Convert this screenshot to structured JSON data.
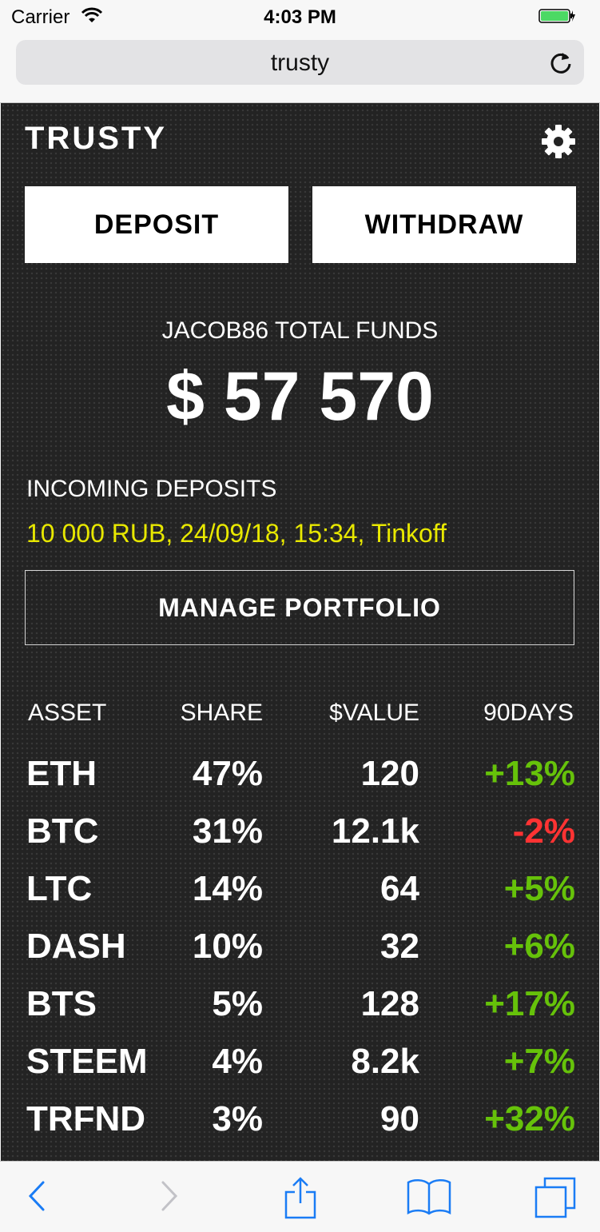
{
  "status_bar": {
    "carrier": "Carrier",
    "time": "4:03 PM"
  },
  "browser": {
    "url": "trusty"
  },
  "app": {
    "logo": "TRUSTY",
    "deposit_label": "DEPOSIT",
    "withdraw_label": "WITHDRAW",
    "total_label": "JACOB86 TOTAL FUNDS",
    "total_value": "$ 57 570",
    "incoming_label": "INCOMING DEPOSITS",
    "incoming_item": "10 000 RUB, 24/09/18, 15:34, Tinkoff",
    "manage_label": "MANAGE PORTFOLIO",
    "table": {
      "headers": [
        "ASSET",
        "SHARE",
        "$VALUE",
        "90DAYS"
      ],
      "rows": [
        {
          "asset": "ETH",
          "share": "47%",
          "value": "120",
          "change": "+13%"
        },
        {
          "asset": "BTC",
          "share": "31%",
          "value": "12.1k",
          "change": "-2%"
        },
        {
          "asset": "LTC",
          "share": "14%",
          "value": "64",
          "change": "+5%"
        },
        {
          "asset": "DASH",
          "share": "10%",
          "value": "32",
          "change": "+6%"
        },
        {
          "asset": "BTS",
          "share": "5%",
          "value": "128",
          "change": "+17%"
        },
        {
          "asset": "STEEM",
          "share": "4%",
          "value": "8.2k",
          "change": "+7%"
        },
        {
          "asset": "TRFND",
          "share": "3%",
          "value": "90",
          "change": "+32%"
        }
      ]
    }
  },
  "colors": {
    "positive": "#66c20a",
    "negative": "#ff3333",
    "incoming": "#e8e800",
    "ios_blue": "#1a7cf5"
  },
  "icons": [
    "wifi-icon",
    "battery-icon",
    "reload-icon",
    "gear-icon",
    "back-icon",
    "forward-icon",
    "share-icon",
    "bookmarks-icon",
    "tabs-icon"
  ]
}
